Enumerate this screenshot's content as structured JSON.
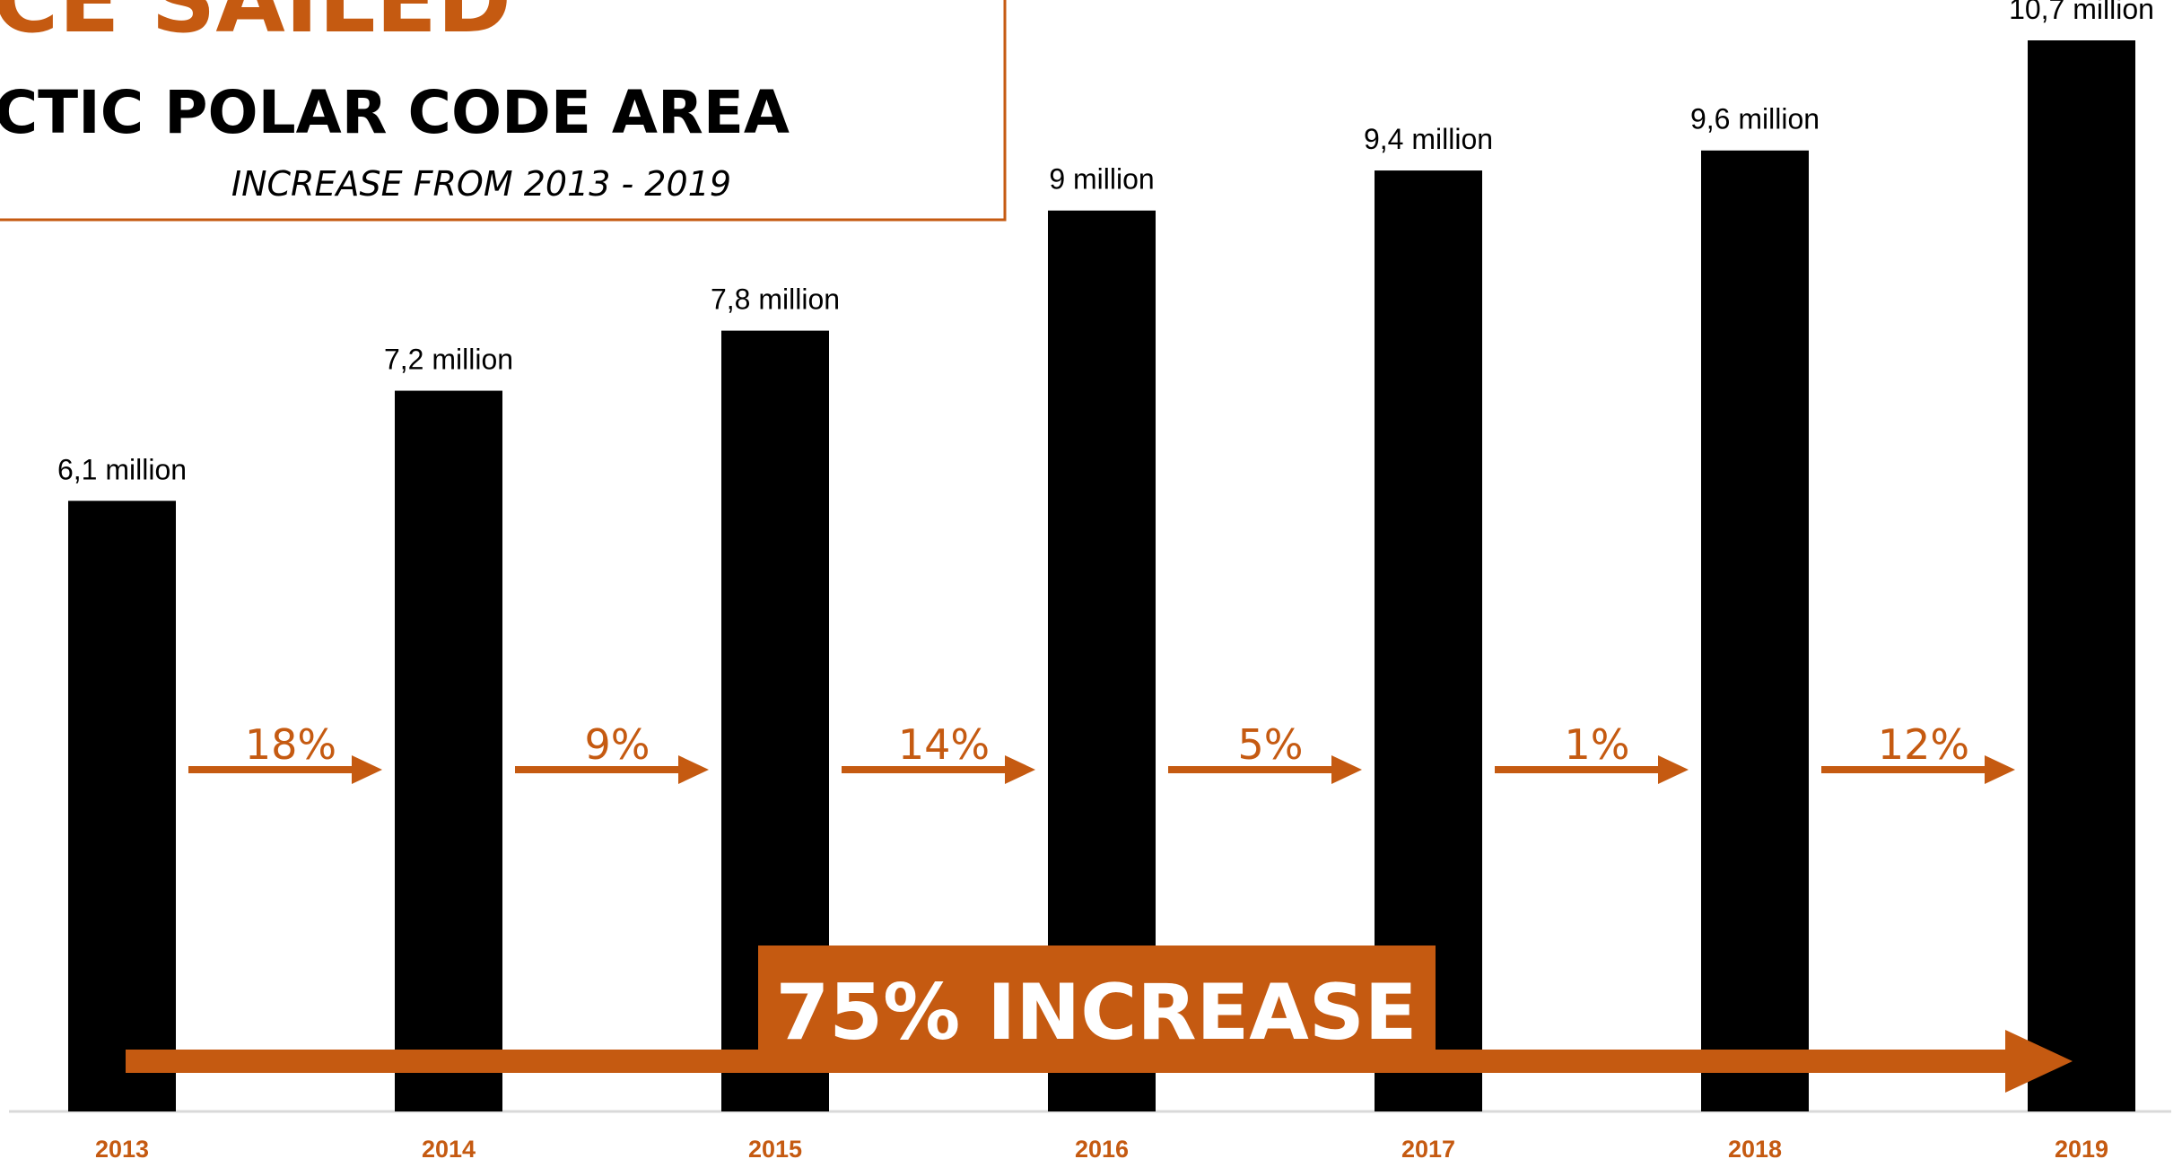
{
  "title": {
    "main": "DISTANCE SAILED",
    "subtitle": "ARCTIC POLAR CODE AREA",
    "note": "INCREASE FROM 2013 - 2019"
  },
  "colors": {
    "accent": "#C55A11",
    "bar": "#000000",
    "axis": "#D9D9D9",
    "text": "#000000",
    "banner_text": "#FFFFFF"
  },
  "chart_data": {
    "type": "bar",
    "categories": [
      "2013",
      "2014",
      "2015",
      "2016",
      "2017",
      "2018",
      "2019"
    ],
    "values": [
      6.1,
      7.2,
      7.8,
      9.0,
      9.4,
      9.6,
      10.7
    ],
    "data_labels": [
      "6,1 million",
      "7,2 million",
      "7,8 million",
      "9 million",
      "9,4 million",
      "9,6 million",
      "10,7 million"
    ],
    "ylim": [
      0,
      10.7
    ],
    "grid": false,
    "legend": "none",
    "growth_labels": [
      "18%",
      "9%",
      "14%",
      "5%",
      "1%",
      "12%"
    ],
    "total_label": "75% INCREASE"
  }
}
